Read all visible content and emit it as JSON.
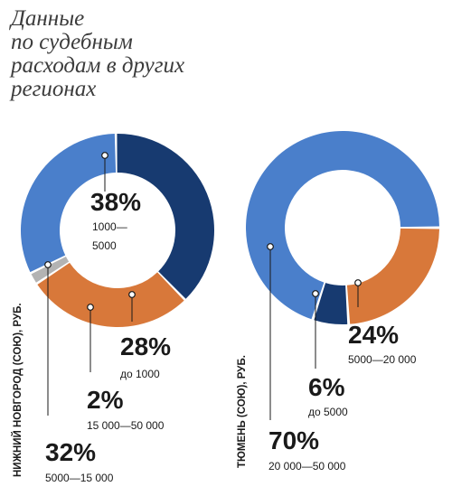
{
  "title": [
    "Данные",
    "по судебным",
    "расходам в других",
    "регионах"
  ],
  "colors": {
    "dark_blue": "#173a70",
    "orange": "#d8783a",
    "gray": "#b3b3b3",
    "light_blue": "#4a7fcb"
  },
  "chart_data": [
    {
      "type": "pie",
      "name": "НИЖНИЙ НОВГОРОД (СОЮ), РУБ.",
      "slices": [
        {
          "label": "1000—\n5000",
          "value": 38,
          "display": "38%",
          "color": "#173a70"
        },
        {
          "label": "до 1000",
          "value": 28,
          "display": "28%",
          "color": "#d8783a"
        },
        {
          "label": "15 000—50 000",
          "value": 2,
          "display": "2%",
          "color": "#b3b3b3"
        },
        {
          "label": "5000—15 000",
          "value": 32,
          "display": "32%",
          "color": "#4a7fcb"
        }
      ]
    },
    {
      "type": "pie",
      "name": "ТЮМЕНЬ (СОЮ), РУБ.",
      "slices": [
        {
          "label": "5000—20 000",
          "value": 24,
          "display": "24%",
          "color": "#d8783a"
        },
        {
          "label": "до 5000",
          "value": 6,
          "display": "6%",
          "color": "#173a70"
        },
        {
          "label": "20 000—50 000",
          "value": 70,
          "display": "70%",
          "color": "#4a7fcb"
        }
      ]
    }
  ]
}
